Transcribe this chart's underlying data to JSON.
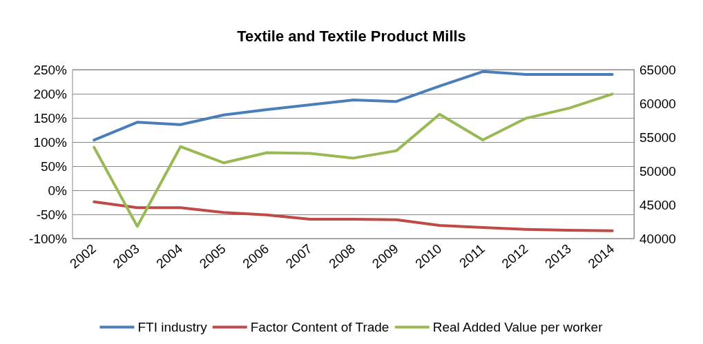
{
  "chart_data": {
    "type": "line",
    "title": "Textile and Textile Product Mills",
    "categories": [
      "2002",
      "2003",
      "2004",
      "2005",
      "2006",
      "2007",
      "2008",
      "2009",
      "2010",
      "2011",
      "2012",
      "2013",
      "2014"
    ],
    "series": [
      {
        "name": "FTI industry",
        "color": "#4a7ebb",
        "values": [
          104,
          141,
          136,
          156,
          167,
          177,
          187,
          184,
          216,
          246,
          240,
          240,
          240
        ]
      },
      {
        "name": "Factor Content of Trade",
        "color": "#be4b48",
        "values": [
          -24,
          -36,
          -36,
          -46,
          -51,
          -60,
          -60,
          -61,
          -73,
          -77,
          -81,
          -83,
          -84
        ]
      },
      {
        "name": "Real Added Value per worker",
        "color": "#98b954",
        "axis": "y2",
        "values": [
          53500,
          41800,
          53600,
          51200,
          52700,
          52600,
          51900,
          53000,
          58400,
          54600,
          57800,
          59300,
          61400
        ]
      }
    ],
    "ylim": [
      -100,
      250
    ],
    "yticks": [
      {
        "value": -100,
        "label": "-100%"
      },
      {
        "value": -50,
        "label": "-50%"
      },
      {
        "value": 0,
        "label": "0%"
      },
      {
        "value": 50,
        "label": "50%"
      },
      {
        "value": 100,
        "label": "100%"
      },
      {
        "value": 150,
        "label": "150%"
      },
      {
        "value": 200,
        "label": "200%"
      },
      {
        "value": 250,
        "label": "250%"
      }
    ],
    "y2lim": [
      40000,
      65000
    ],
    "y2ticks": [
      40000,
      45000,
      50000,
      55000,
      60000,
      65000
    ],
    "grid": "y",
    "legend": "bottom",
    "marker": "none",
    "line_style": "solid"
  }
}
